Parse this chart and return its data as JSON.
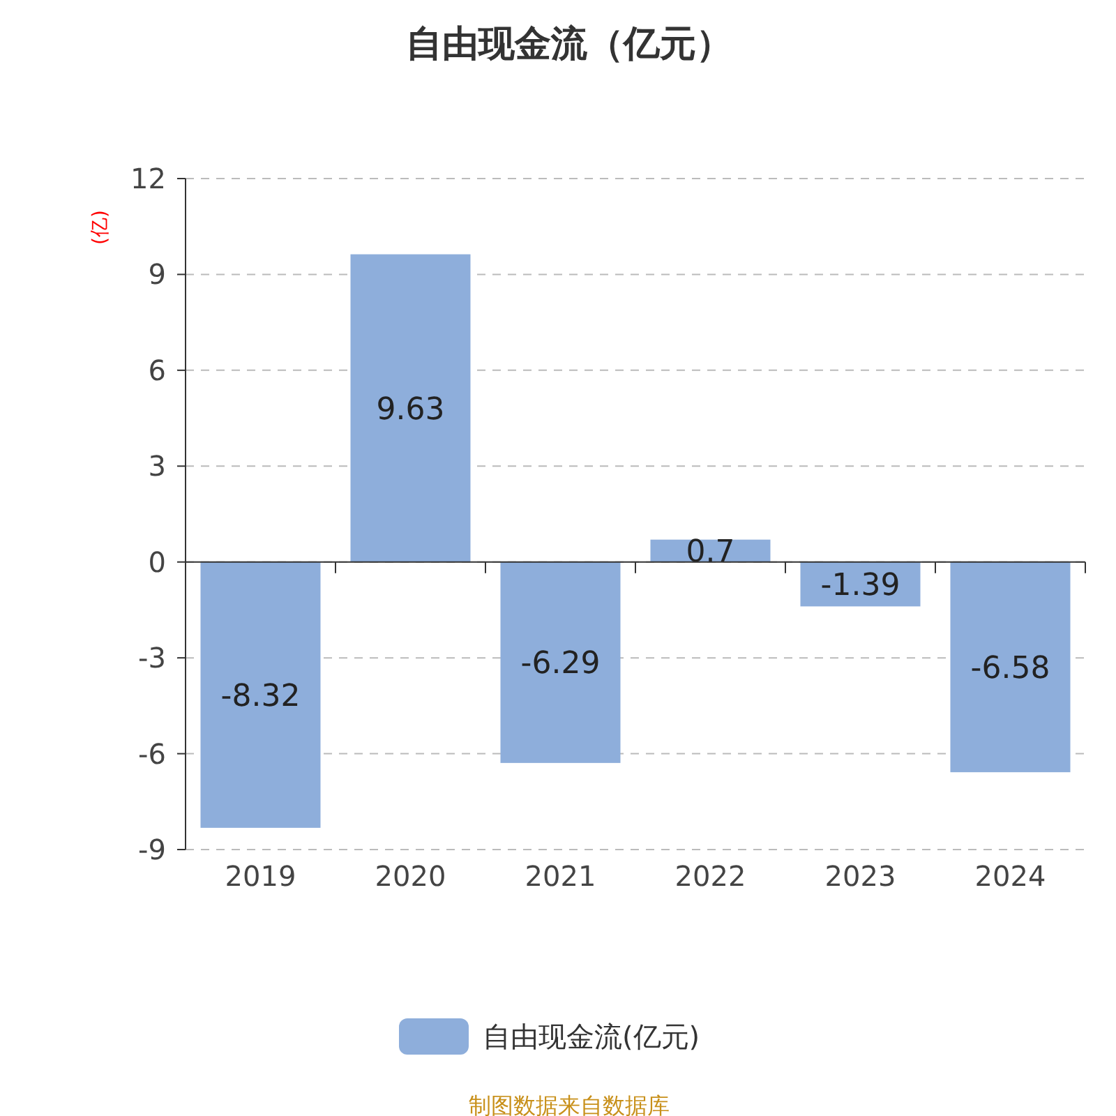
{
  "chart_data": {
    "type": "bar",
    "title": "自由现金流（亿元）",
    "ylabel": "(亿)",
    "categories": [
      "2019",
      "2020",
      "2021",
      "2022",
      "2023",
      "2024"
    ],
    "series": [
      {
        "name": "自由现金流(亿元)",
        "color": "#8eaedb",
        "values": [
          -8.32,
          9.63,
          -6.29,
          0.7,
          -1.39,
          -6.58
        ]
      }
    ],
    "ylim": [
      -9,
      12
    ],
    "yticks": [
      -9,
      -6,
      -3,
      0,
      3,
      6,
      9,
      12
    ],
    "grid": "y",
    "legend": "bottom",
    "data_labels": true,
    "annotations": [
      "制图数据来自数据库"
    ]
  }
}
